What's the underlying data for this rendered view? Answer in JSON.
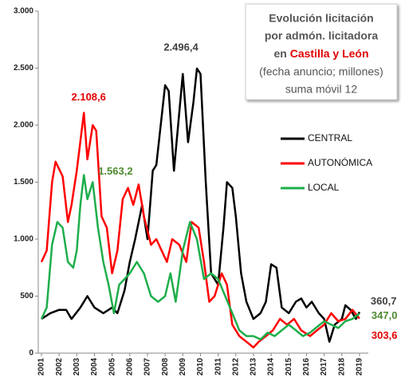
{
  "chart_data": {
    "type": "line",
    "title": {
      "line1": "Evolución licitación",
      "line2": "por admón. licitadora",
      "line3_prefix": "en ",
      "line3_highlight": "Castilla y León",
      "line4": "(fecha anuncio; millones)",
      "line5": "suma móvil 12"
    },
    "highlight_color": "#e00000",
    "xlim": [
      2001,
      2019.5
    ],
    "xticks": [
      2001,
      2002,
      2003,
      2004,
      2005,
      2006,
      2007,
      2008,
      2009,
      2010,
      2011,
      2012,
      2013,
      2014,
      2015,
      2016,
      2017,
      2018,
      2019
    ],
    "ylim": [
      0,
      3000
    ],
    "yticks": [
      0,
      500,
      {
        "value": 1000,
        "label": "1.000"
      },
      {
        "value": 1500,
        "label": "1.500"
      },
      {
        "value": 2000,
        "label": "2.000"
      },
      {
        "value": 2500,
        "label": "2.500"
      },
      {
        "value": 3000,
        "label": "3.000"
      }
    ],
    "grid": false,
    "series": [
      {
        "name": "CENTRAL",
        "color": "#000000",
        "x": [
          2001,
          2001.5,
          2002,
          2002.4,
          2002.7,
          2003.2,
          2003.6,
          2004,
          2004.5,
          2005,
          2005.3,
          2005.7,
          2006,
          2006.3,
          2006.7,
          2007,
          2007.3,
          2007.5,
          2008,
          2008.2,
          2008.5,
          2009,
          2009.3,
          2009.6,
          2009.8,
          2010,
          2010.3,
          2010.6,
          2011,
          2011.3,
          2011.5,
          2011.8,
          2012,
          2012.3,
          2012.6,
          2013,
          2013.4,
          2013.7,
          2014,
          2014.3,
          2014.6,
          2015,
          2015.4,
          2015.7,
          2016,
          2016.3,
          2016.7,
          2017,
          2017.3,
          2017.6,
          2018,
          2018.2,
          2018.5,
          2018.8,
          2019
        ],
        "values": [
          300,
          350,
          380,
          380,
          300,
          400,
          500,
          400,
          350,
          400,
          350,
          550,
          800,
          1000,
          1300,
          1000,
          1600,
          1650,
          2350,
          2300,
          1600,
          2450,
          1850,
          2200,
          2496.4,
          2450,
          1500,
          700,
          600,
          1100,
          1500,
          1450,
          1200,
          700,
          450,
          300,
          350,
          450,
          780,
          750,
          400,
          350,
          450,
          480,
          400,
          450,
          350,
          300,
          100,
          250,
          300,
          420,
          380,
          300,
          360.7
        ]
      },
      {
        "name": "AUTONÓMICA",
        "color": "#ff0000",
        "x": [
          2001,
          2001.3,
          2001.6,
          2001.8,
          2002.2,
          2002.5,
          2002.7,
          2003,
          2003.4,
          2003.6,
          2003.9,
          2004.1,
          2004.4,
          2004.7,
          2005,
          2005.3,
          2005.6,
          2005.9,
          2006.2,
          2006.5,
          2006.8,
          2007.2,
          2007.5,
          2007.8,
          2008.1,
          2008.4,
          2008.8,
          2009.2,
          2009.5,
          2009.9,
          2010.2,
          2010.5,
          2010.8,
          2011.2,
          2011.5,
          2011.8,
          2012.2,
          2012.6,
          2013,
          2013.3,
          2013.7,
          2014.1,
          2014.5,
          2014.9,
          2015.3,
          2015.7,
          2016.2,
          2016.6,
          2017,
          2017.4,
          2017.8,
          2018.2,
          2018.6,
          2019
        ],
        "values": [
          800,
          900,
          1500,
          1680,
          1550,
          1150,
          1300,
          1600,
          2108.6,
          1700,
          2000,
          1950,
          1200,
          1100,
          700,
          900,
          1350,
          1450,
          1300,
          1480,
          1200,
          950,
          1000,
          900,
          800,
          1000,
          950,
          800,
          1150,
          1100,
          800,
          450,
          500,
          700,
          600,
          250,
          150,
          100,
          50,
          100,
          150,
          200,
          300,
          250,
          300,
          200,
          150,
          200,
          250,
          350,
          280,
          300,
          380,
          303.6
        ]
      },
      {
        "name": "LOCAL",
        "color": "#1fae4b",
        "x": [
          2001,
          2001.3,
          2001.6,
          2001.9,
          2002.2,
          2002.5,
          2002.8,
          2003,
          2003.2,
          2003.4,
          2003.6,
          2003.9,
          2004.2,
          2004.5,
          2004.8,
          2005.1,
          2005.4,
          2005.7,
          2006,
          2006.4,
          2006.8,
          2007.2,
          2007.6,
          2008,
          2008.3,
          2008.6,
          2009,
          2009.4,
          2009.8,
          2010.2,
          2010.6,
          2011,
          2011.4,
          2011.8,
          2012.2,
          2012.6,
          2013,
          2013.4,
          2013.8,
          2014.2,
          2014.6,
          2015,
          2015.4,
          2015.8,
          2016.2,
          2016.6,
          2017,
          2017.4,
          2017.8,
          2018.2,
          2018.6,
          2019
        ],
        "values": [
          300,
          400,
          950,
          1150,
          1100,
          800,
          750,
          900,
          1300,
          1563.2,
          1350,
          1500,
          1100,
          800,
          600,
          350,
          600,
          650,
          700,
          800,
          700,
          500,
          450,
          500,
          700,
          450,
          900,
          1150,
          1000,
          650,
          700,
          650,
          500,
          350,
          200,
          150,
          150,
          120,
          180,
          150,
          200,
          250,
          200,
          150,
          180,
          230,
          280,
          250,
          220,
          280,
          300,
          347.0
        ]
      }
    ],
    "annotations": [
      {
        "text": "2.496,4",
        "x": 2009.8,
        "y": 2496.4,
        "color": "#404040"
      },
      {
        "text": "2.108,6",
        "x": 2003.4,
        "y": 2108.6,
        "color": "#e00000"
      },
      {
        "text": "1.563,2",
        "x": 2003.4,
        "y": 1563.2,
        "color": "#4f8a2f"
      },
      {
        "text": "360,7",
        "x": 2019,
        "y": 360.7,
        "color": "#404040"
      },
      {
        "text": "347,0",
        "x": 2019,
        "y": 347.0,
        "color": "#4f8a2f"
      },
      {
        "text": "303,6",
        "x": 2019,
        "y": 303.6,
        "color": "#e00000"
      }
    ]
  }
}
